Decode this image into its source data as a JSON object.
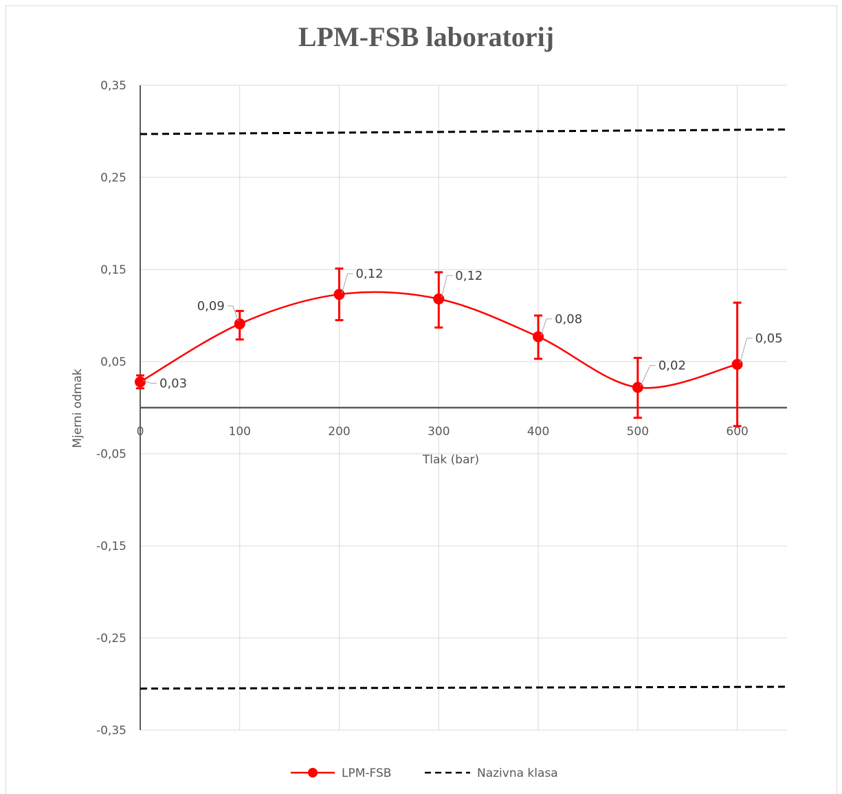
{
  "chart_data": {
    "type": "scatter",
    "title": "LPM-FSB laboratorij",
    "xlabel": "Tlak (bar)",
    "ylabel": "Mjerni odmak",
    "xlim": [
      0,
      650
    ],
    "ylim": [
      -0.35,
      0.35
    ],
    "x_ticks": [
      "0",
      "100",
      "200",
      "300",
      "400",
      "500",
      "600"
    ],
    "y_ticks": [
      "-0,35",
      "-0,25",
      "-0,15",
      "-0,05",
      "0,05",
      "0,15",
      "0,25",
      "0,35"
    ],
    "grid": true,
    "legend_position": "bottom",
    "series": [
      {
        "name": "LPM-FSB",
        "color": "#ff0000",
        "style": "smooth-line-with-markers",
        "x": [
          0,
          100,
          200,
          300,
          400,
          500,
          600
        ],
        "y": [
          0.028,
          0.091,
          0.123,
          0.118,
          0.077,
          0.022,
          0.047
        ],
        "error_low": [
          0.021,
          0.074,
          0.095,
          0.087,
          0.053,
          -0.011,
          -0.02
        ],
        "error_high": [
          0.035,
          0.105,
          0.151,
          0.147,
          0.1,
          0.054,
          0.114
        ],
        "data_labels": [
          "0,03",
          "0,09",
          "0,12",
          "0,12",
          "0,08",
          "0,02",
          "0,05"
        ]
      },
      {
        "name": "Nazivna klasa",
        "color": "#000000",
        "style": "dashed",
        "upper": {
          "x": [
            0,
            650
          ],
          "y": [
            0.297,
            0.302
          ]
        },
        "lower": {
          "x": [
            0,
            650
          ],
          "y": [
            -0.305,
            -0.303
          ]
        }
      }
    ]
  }
}
